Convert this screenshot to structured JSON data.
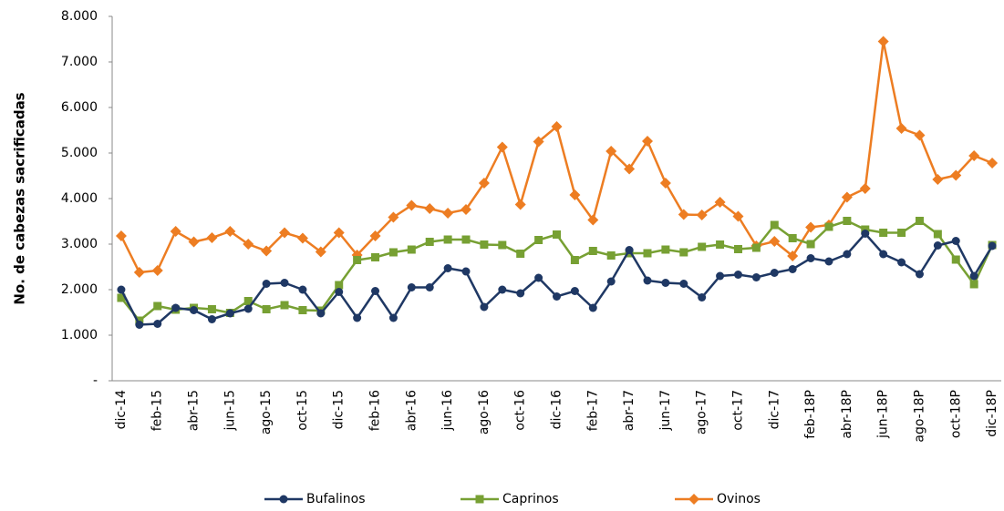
{
  "chart_data": {
    "type": "line",
    "y_label": "No. de cabezas sacrificadas",
    "categories": [
      "dic-14",
      null,
      "feb-15",
      null,
      "abr-15",
      null,
      "jun-15",
      null,
      "ago-15",
      null,
      "oct-15",
      null,
      "dic-15",
      null,
      "feb-16",
      null,
      "abr-16",
      null,
      "jun-16",
      null,
      "ago-16",
      null,
      "oct-16",
      null,
      "dic-16",
      null,
      "feb-17",
      null,
      "abr-17",
      null,
      "jun-17",
      null,
      "ago-17",
      null,
      "oct-17",
      null,
      "dic-17",
      null,
      "feb-18P",
      null,
      "abr-18P",
      null,
      "jun-18P",
      null,
      "ago-18P",
      null,
      "oct-18P",
      null,
      "dic-18P"
    ],
    "series": [
      {
        "name": "Bufalinos",
        "color": "#1f3864",
        "marker": "circle",
        "values": [
          2000,
          1230,
          1250,
          1600,
          1550,
          1350,
          1480,
          1580,
          2130,
          2150,
          2000,
          1480,
          1950,
          1380,
          1970,
          1380,
          2050,
          2050,
          2470,
          2400,
          1620,
          2000,
          1920,
          2260,
          1850,
          1970,
          1600,
          2180,
          2870,
          2200,
          2150,
          2130,
          1830,
          2300,
          2330,
          2270,
          2370,
          2450,
          2690,
          2620,
          2780,
          3230,
          2780,
          2600,
          2340,
          2970,
          3070,
          2300,
          2960
        ]
      },
      {
        "name": "Caprinos",
        "color": "#77a033",
        "marker": "square",
        "values": [
          1820,
          1320,
          1640,
          1560,
          1600,
          1570,
          1490,
          1750,
          1570,
          1660,
          1550,
          1540,
          2100,
          2650,
          2710,
          2820,
          2880,
          3050,
          3100,
          3100,
          2990,
          2980,
          2790,
          3090,
          3210,
          2650,
          2850,
          2750,
          2800,
          2800,
          2880,
          2820,
          2940,
          2990,
          2890,
          2920,
          3420,
          3130,
          3000,
          3380,
          3510,
          3320,
          3250,
          3250,
          3510,
          3220,
          2660,
          2120,
          2980
        ]
      },
      {
        "name": "Ovinos",
        "color": "#ed7d22",
        "marker": "diamond",
        "values": [
          3180,
          2380,
          2420,
          3280,
          3050,
          3140,
          3280,
          3000,
          2850,
          3250,
          3130,
          2830,
          3250,
          2760,
          3180,
          3590,
          3850,
          3780,
          3680,
          3760,
          4340,
          5130,
          3870,
          5250,
          5580,
          4080,
          3530,
          5040,
          4650,
          5260,
          4340,
          3650,
          3640,
          3920,
          3610,
          2960,
          3060,
          2740,
          3370,
          3420,
          4030,
          4220,
          7450,
          5540,
          5390,
          4420,
          4510,
          4940,
          4780
        ]
      }
    ],
    "ylim": [
      0,
      8000
    ],
    "yticks": [
      {
        "value": 0,
        "label": "-"
      },
      {
        "value": 1000,
        "label": "1.000"
      },
      {
        "value": 2000,
        "label": "2.000"
      },
      {
        "value": 3000,
        "label": "3.000"
      },
      {
        "value": 4000,
        "label": "4.000"
      },
      {
        "value": 5000,
        "label": "5.000"
      },
      {
        "value": 6000,
        "label": "6.000"
      },
      {
        "value": 7000,
        "label": "7.000"
      },
      {
        "value": 8000,
        "label": "8.000"
      }
    ],
    "grid": false,
    "legend": "bottom"
  }
}
